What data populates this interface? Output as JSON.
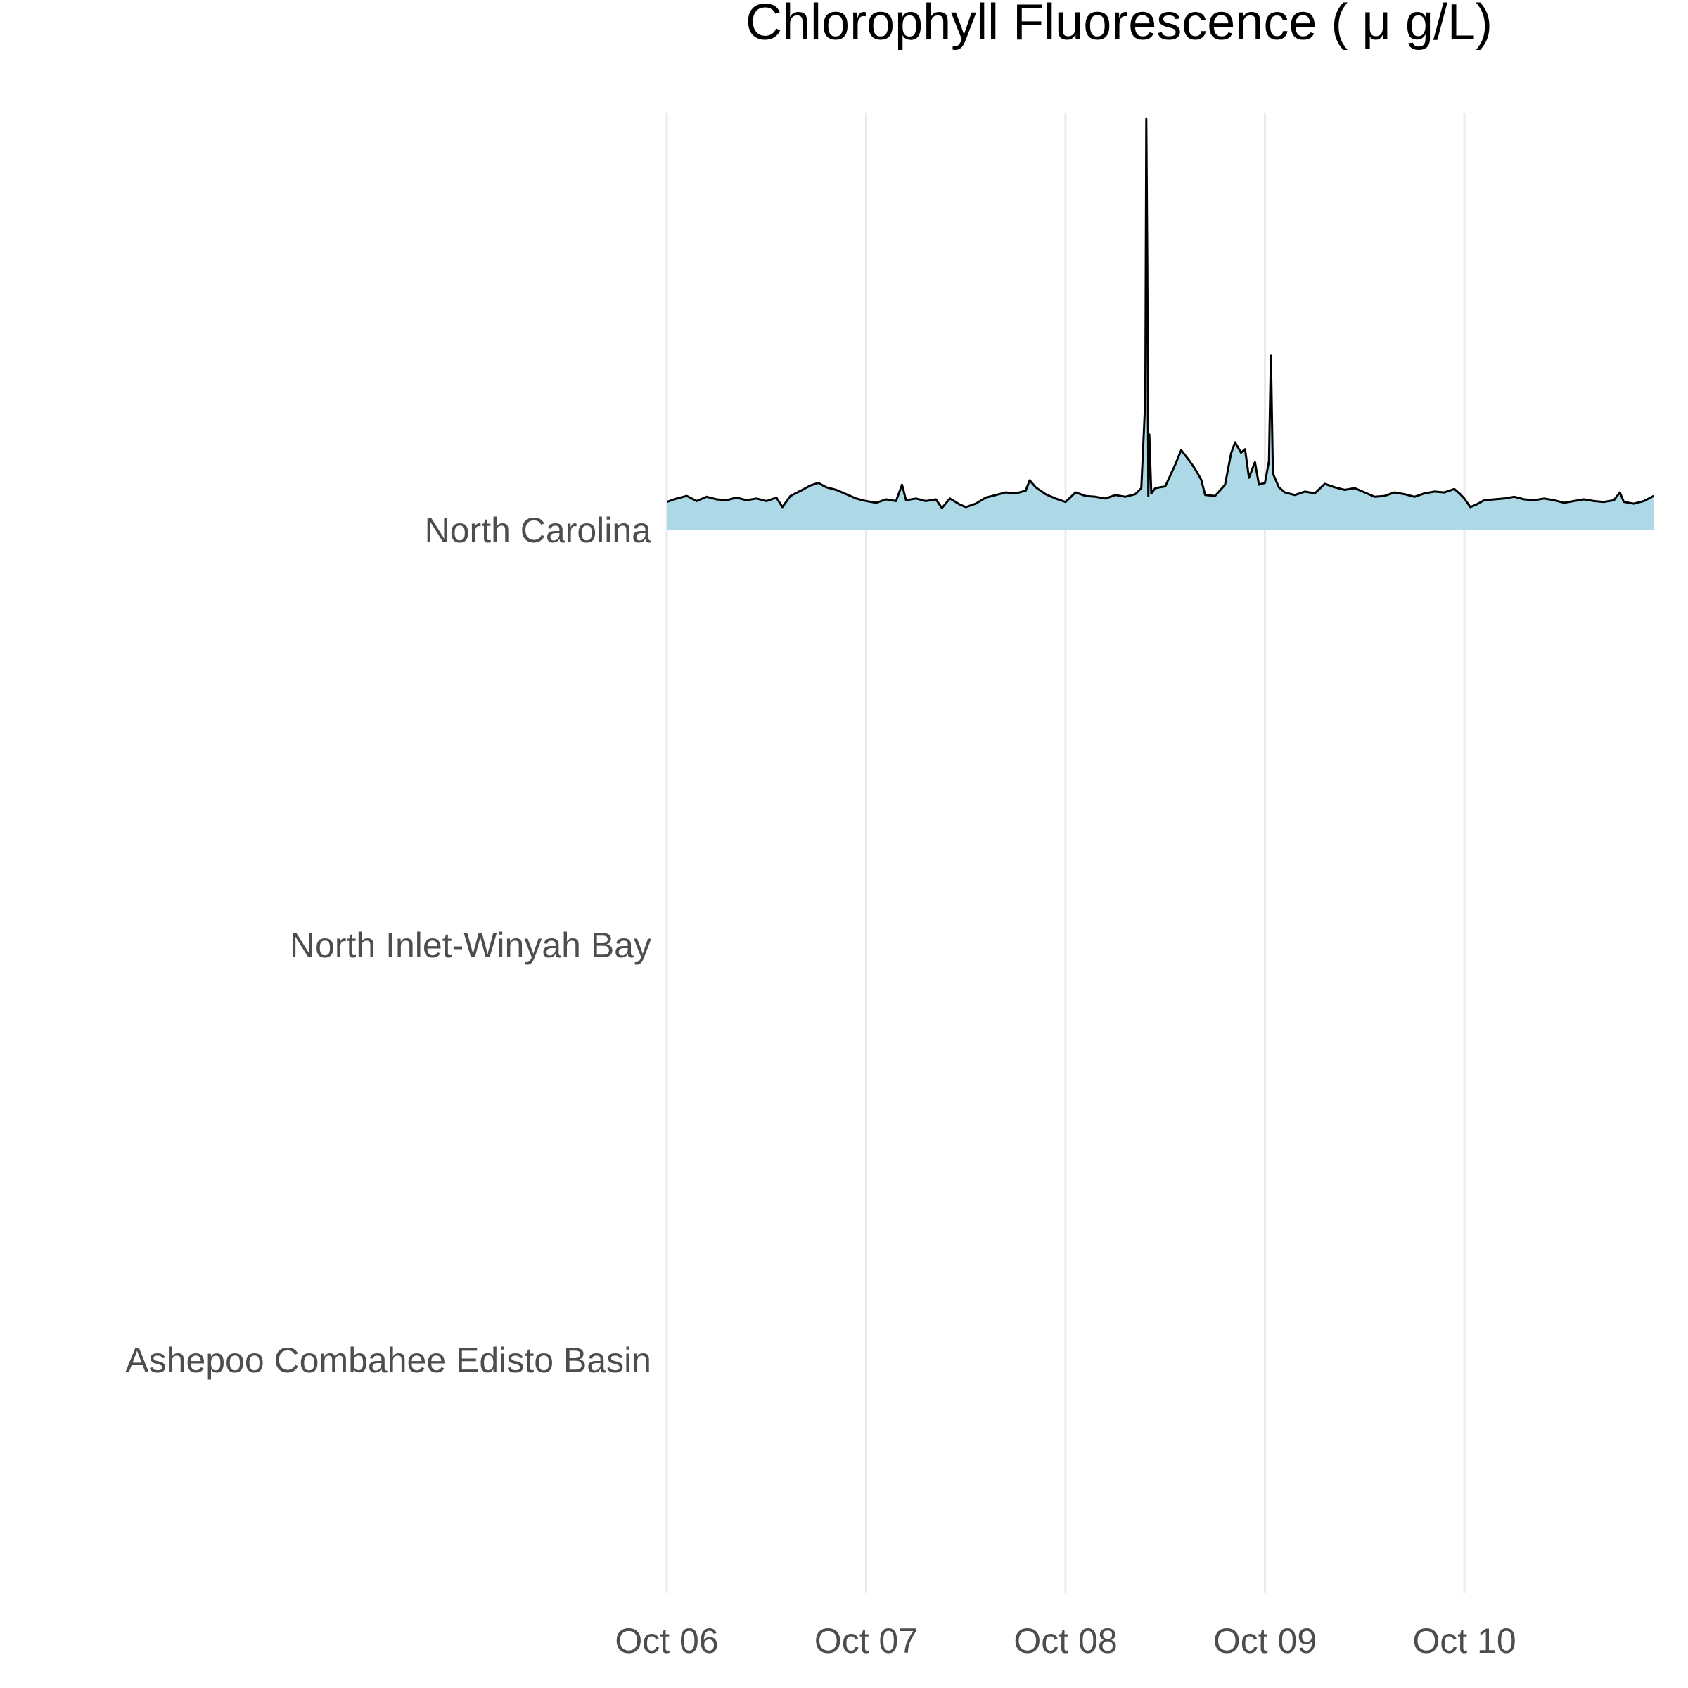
{
  "chart_data": {
    "type": "area",
    "title": "Chlorophyll Fluorescence ( μ g/L)",
    "xlabel": "",
    "ylabel": "",
    "x_ticks": [
      {
        "label": "Oct 06",
        "day": 0
      },
      {
        "label": "Oct 07",
        "day": 1
      },
      {
        "label": "Oct 08",
        "day": 2
      },
      {
        "label": "Oct 09",
        "day": 3
      },
      {
        "label": "Oct 10",
        "day": 4
      }
    ],
    "x_range_days": [
      0,
      4.95
    ],
    "grid": true,
    "rows": [
      "North Carolina",
      "North Inlet-Winyah Bay",
      "Ashepoo Combahee Edisto Basin"
    ],
    "fill_color": "#add8e6",
    "line_color": "#000000",
    "series": [
      {
        "name": "North Carolina",
        "y_scale_max": 48,
        "points": [
          [
            0.0,
            3.2
          ],
          [
            0.05,
            3.6
          ],
          [
            0.1,
            3.9
          ],
          [
            0.15,
            3.3
          ],
          [
            0.2,
            3.8
          ],
          [
            0.25,
            3.5
          ],
          [
            0.3,
            3.4
          ],
          [
            0.35,
            3.7
          ],
          [
            0.4,
            3.4
          ],
          [
            0.45,
            3.6
          ],
          [
            0.5,
            3.3
          ],
          [
            0.55,
            3.7
          ],
          [
            0.58,
            2.6
          ],
          [
            0.62,
            3.9
          ],
          [
            0.68,
            4.6
          ],
          [
            0.72,
            5.1
          ],
          [
            0.76,
            5.4
          ],
          [
            0.8,
            4.9
          ],
          [
            0.85,
            4.6
          ],
          [
            0.9,
            4.1
          ],
          [
            0.95,
            3.6
          ],
          [
            1.0,
            3.3
          ],
          [
            1.05,
            3.1
          ],
          [
            1.1,
            3.5
          ],
          [
            1.15,
            3.3
          ],
          [
            1.18,
            5.2
          ],
          [
            1.2,
            3.4
          ],
          [
            1.25,
            3.6
          ],
          [
            1.3,
            3.3
          ],
          [
            1.35,
            3.5
          ],
          [
            1.38,
            2.5
          ],
          [
            1.42,
            3.6
          ],
          [
            1.47,
            2.9
          ],
          [
            1.5,
            2.6
          ],
          [
            1.55,
            3.0
          ],
          [
            1.6,
            3.7
          ],
          [
            1.65,
            4.0
          ],
          [
            1.7,
            4.3
          ],
          [
            1.75,
            4.2
          ],
          [
            1.8,
            4.5
          ],
          [
            1.82,
            5.7
          ],
          [
            1.85,
            4.9
          ],
          [
            1.9,
            4.1
          ],
          [
            1.95,
            3.6
          ],
          [
            2.0,
            3.2
          ],
          [
            2.05,
            4.3
          ],
          [
            2.1,
            3.9
          ],
          [
            2.15,
            3.8
          ],
          [
            2.2,
            3.6
          ],
          [
            2.25,
            4.0
          ],
          [
            2.3,
            3.8
          ],
          [
            2.35,
            4.1
          ],
          [
            2.38,
            4.8
          ],
          [
            2.4,
            15.0
          ],
          [
            2.405,
            47.5
          ],
          [
            2.41,
            31.0
          ],
          [
            2.415,
            3.9
          ],
          [
            2.42,
            11.0
          ],
          [
            2.43,
            4.2
          ],
          [
            2.45,
            4.8
          ],
          [
            2.5,
            5.0
          ],
          [
            2.55,
            7.5
          ],
          [
            2.58,
            9.2
          ],
          [
            2.62,
            8.0
          ],
          [
            2.65,
            7.0
          ],
          [
            2.68,
            5.8
          ],
          [
            2.7,
            4.0
          ],
          [
            2.75,
            3.9
          ],
          [
            2.8,
            5.2
          ],
          [
            2.83,
            8.8
          ],
          [
            2.85,
            10.1
          ],
          [
            2.88,
            8.9
          ],
          [
            2.9,
            9.3
          ],
          [
            2.92,
            6.0
          ],
          [
            2.95,
            7.8
          ],
          [
            2.97,
            5.2
          ],
          [
            3.0,
            5.4
          ],
          [
            3.02,
            7.9
          ],
          [
            3.03,
            20.1
          ],
          [
            3.04,
            6.5
          ],
          [
            3.07,
            4.9
          ],
          [
            3.1,
            4.3
          ],
          [
            3.15,
            4.0
          ],
          [
            3.2,
            4.4
          ],
          [
            3.25,
            4.2
          ],
          [
            3.3,
            5.3
          ],
          [
            3.35,
            4.9
          ],
          [
            3.4,
            4.6
          ],
          [
            3.45,
            4.8
          ],
          [
            3.5,
            4.3
          ],
          [
            3.55,
            3.8
          ],
          [
            3.6,
            3.9
          ],
          [
            3.65,
            4.3
          ],
          [
            3.7,
            4.1
          ],
          [
            3.75,
            3.8
          ],
          [
            3.8,
            4.2
          ],
          [
            3.85,
            4.4
          ],
          [
            3.9,
            4.3
          ],
          [
            3.95,
            4.7
          ],
          [
            3.98,
            4.1
          ],
          [
            4.0,
            3.6
          ],
          [
            4.03,
            2.6
          ],
          [
            4.06,
            2.9
          ],
          [
            4.1,
            3.4
          ],
          [
            4.15,
            3.5
          ],
          [
            4.2,
            3.6
          ],
          [
            4.25,
            3.8
          ],
          [
            4.3,
            3.5
          ],
          [
            4.35,
            3.4
          ],
          [
            4.4,
            3.6
          ],
          [
            4.45,
            3.4
          ],
          [
            4.5,
            3.1
          ],
          [
            4.55,
            3.3
          ],
          [
            4.6,
            3.5
          ],
          [
            4.65,
            3.3
          ],
          [
            4.7,
            3.2
          ],
          [
            4.75,
            3.4
          ],
          [
            4.78,
            4.3
          ],
          [
            4.8,
            3.2
          ],
          [
            4.85,
            3.0
          ],
          [
            4.9,
            3.3
          ],
          [
            4.95,
            3.9
          ]
        ]
      },
      {
        "name": "North Inlet-Winyah Bay",
        "points": []
      },
      {
        "name": "Ashepoo Combahee Edisto Basin",
        "points": []
      }
    ]
  }
}
